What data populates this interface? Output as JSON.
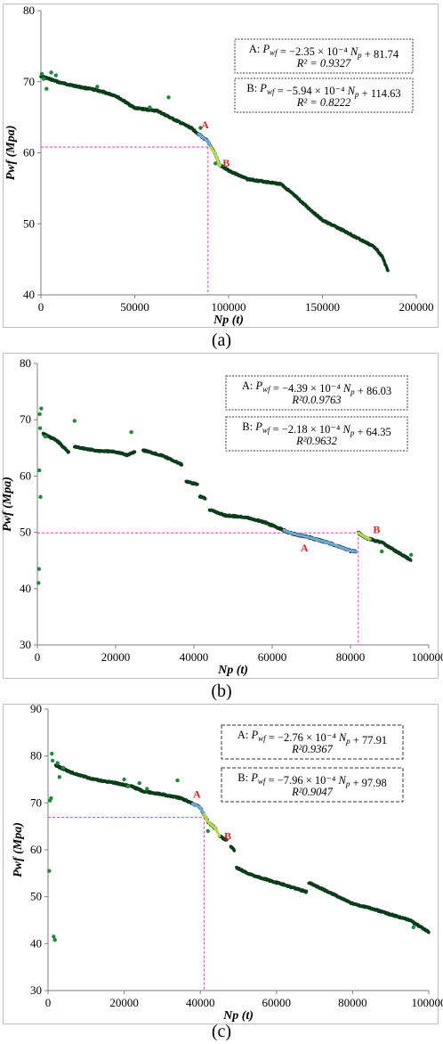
{
  "colors": {
    "dark_points": "#0b3d1b",
    "green_points": "#1e8a3c",
    "fit_a": "#6fa8dc",
    "fit_b": "#b7d94c",
    "guide": "#ff33cc",
    "label_red": "#e01f1f"
  },
  "chart_data": [
    {
      "type": "scatter",
      "caption": "(a)",
      "xlabel": "Np (t)",
      "ylabel": "Pwf (Mpa)",
      "xlim": [
        0,
        200000
      ],
      "ylim": [
        40,
        80
      ],
      "xticks": [
        "0",
        "50000",
        "100000",
        "150000",
        "200000"
      ],
      "yticks": [
        "40",
        "50",
        "60",
        "70",
        "80"
      ],
      "breakpoint": {
        "x": 89000,
        "y": 60.8
      },
      "fit_labels": [
        "A",
        "B"
      ],
      "equations": [
        {
          "name": "A",
          "line1": "A: P_wf = −2.35 × 10⁻⁴ N_p + 81.74",
          "line2": "R² = 0.9327"
        },
        {
          "name": "B",
          "line1": "B: P_wf = −5.94 × 10⁻⁴ N_p + 114.63",
          "line2": "R² = 0.8222"
        }
      ],
      "profile": [
        [
          0,
          70.8
        ],
        [
          10000,
          69.9
        ],
        [
          20000,
          69.3
        ],
        [
          30000,
          68.8
        ],
        [
          40000,
          68.0
        ],
        [
          50000,
          66.3
        ],
        [
          62000,
          65.9
        ],
        [
          70000,
          64.8
        ],
        [
          80000,
          63.5
        ],
        [
          86000,
          62.2
        ],
        [
          89000,
          61.6
        ],
        [
          90000,
          61.0
        ],
        [
          93000,
          59.8
        ],
        [
          95000,
          58.3
        ],
        [
          100000,
          57.5
        ],
        [
          110000,
          56.3
        ],
        [
          120000,
          55.9
        ],
        [
          128000,
          55.6
        ],
        [
          135000,
          54.0
        ],
        [
          140000,
          52.8
        ],
        [
          150000,
          50.5
        ],
        [
          160000,
          49.2
        ],
        [
          170000,
          47.8
        ],
        [
          178000,
          46.7
        ],
        [
          182000,
          45.3
        ],
        [
          185000,
          43.3
        ]
      ],
      "outliers": [
        [
          500,
          71.1
        ],
        [
          1500,
          70.4
        ],
        [
          3000,
          69.0
        ],
        [
          5500,
          71.3
        ],
        [
          8000,
          70.9
        ],
        [
          30000,
          69.3
        ],
        [
          58000,
          66.4
        ],
        [
          68000,
          67.8
        ],
        [
          85000,
          63.5
        ],
        [
          93000,
          58.5
        ]
      ],
      "fit_a_range": [
        84000,
        90500
      ],
      "fit_b_range": [
        90500,
        95500
      ]
    },
    {
      "type": "scatter",
      "caption": "(b)",
      "xlabel": "Np (t)",
      "ylabel": "Pwf (Mpa)",
      "xlim": [
        0,
        100000
      ],
      "ylim": [
        30,
        80
      ],
      "xticks": [
        "0",
        "20000",
        "40000",
        "60000",
        "80000",
        "100000"
      ],
      "yticks": [
        "30",
        "40",
        "50",
        "60",
        "70",
        "80"
      ],
      "breakpoint": {
        "x": 82000,
        "y": 49.9
      },
      "fit_labels": [
        "A",
        "B"
      ],
      "equations": [
        {
          "name": "A",
          "line1": "A: P_wf = −4.39 × 10⁻⁴ N_p + 86.03",
          "line2": "R²0.0.9763"
        },
        {
          "name": "B",
          "line1": "B: P_wf = −2.18 × 10⁻⁴ N_p + 64.35",
          "line2": "R²0.9632"
        }
      ],
      "segments": [
        [
          [
            1500,
            67.5
          ],
          [
            5000,
            66.3
          ],
          [
            8000,
            64.2
          ]
        ],
        [
          [
            9500,
            65.2
          ],
          [
            15000,
            64.5
          ],
          [
            20000,
            64.3
          ],
          [
            23000,
            63.7
          ],
          [
            25000,
            64.4
          ]
        ],
        [
          [
            27000,
            64.6
          ],
          [
            32000,
            63.6
          ],
          [
            37000,
            62.0
          ]
        ],
        [
          [
            38000,
            59.0
          ],
          [
            41000,
            58.5
          ]
        ],
        [
          [
            41500,
            56.4
          ],
          [
            43000,
            56.0
          ]
        ],
        [
          [
            44000,
            54.0
          ],
          [
            48000,
            53.0
          ],
          [
            53000,
            52.7
          ],
          [
            58000,
            51.8
          ],
          [
            65000,
            49.8
          ],
          [
            70000,
            49.0
          ],
          [
            75000,
            48.0
          ],
          [
            80000,
            46.7
          ],
          [
            81500,
            46.6
          ]
        ],
        [
          [
            82000,
            49.9
          ],
          [
            84000,
            49.0
          ],
          [
            88000,
            48.2
          ],
          [
            92000,
            46.5
          ],
          [
            95500,
            45.0
          ]
        ]
      ],
      "outliers": [
        [
          300,
          41.0
        ],
        [
          400,
          43.5
        ],
        [
          600,
          71.0
        ],
        [
          700,
          68.5
        ],
        [
          500,
          61.0
        ],
        [
          800,
          56.3
        ],
        [
          1000,
          72.0
        ],
        [
          2000,
          67.0
        ],
        [
          9500,
          69.8
        ],
        [
          24000,
          67.8
        ],
        [
          88000,
          46.6
        ],
        [
          95500,
          46.0
        ]
      ],
      "fit_a_range": [
        63000,
        81500
      ],
      "fit_b_range": [
        82000,
        85000
      ]
    },
    {
      "type": "scatter",
      "caption": "(c)",
      "xlabel": "Np (t)",
      "ylabel": "Pwf (Mpa)",
      "xlim": [
        0,
        100000
      ],
      "ylim": [
        30,
        90
      ],
      "xticks": [
        "0",
        "20000",
        "40000",
        "60000",
        "80000",
        "100000"
      ],
      "yticks": [
        "30",
        "40",
        "50",
        "60",
        "70",
        "80",
        "90"
      ],
      "breakpoint": {
        "x": 41000,
        "y": 66.9
      },
      "fit_labels": [
        "A",
        "B"
      ],
      "equations": [
        {
          "name": "A",
          "line1": "A: P_wf = −2.76 × 10⁻⁴ N_p + 77.91",
          "line2": "R²0.9367"
        },
        {
          "name": "B",
          "line1": "B: P_wf = −7.96 × 10⁻⁴ N_p + 97.98",
          "line2": "R²0.9047"
        }
      ],
      "segments": [
        [
          [
            2000,
            78.0
          ],
          [
            6000,
            76.5
          ],
          [
            12000,
            75.0
          ],
          [
            18000,
            74.2
          ],
          [
            22000,
            73.5
          ],
          [
            25000,
            72.5
          ],
          [
            30000,
            71.8
          ],
          [
            35000,
            71.0
          ],
          [
            40000,
            69.0
          ],
          [
            42000,
            66.0
          ],
          [
            44000,
            64.5
          ]
        ],
        [
          [
            45000,
            63.0
          ],
          [
            47000,
            62.0
          ]
        ],
        [
          [
            48000,
            60.8
          ],
          [
            49000,
            59.8
          ]
        ],
        [
          [
            49500,
            56.2
          ],
          [
            53000,
            54.8
          ],
          [
            58000,
            53.5
          ],
          [
            63000,
            52.3
          ],
          [
            68000,
            51.0
          ]
        ],
        [
          [
            68500,
            53.0
          ],
          [
            75000,
            50.5
          ],
          [
            80000,
            48.5
          ],
          [
            85000,
            47.5
          ],
          [
            90000,
            46.2
          ],
          [
            95000,
            45.0
          ],
          [
            100000,
            42.5
          ]
        ]
      ],
      "outliers": [
        [
          300,
          55.5
        ],
        [
          500,
          70.5
        ],
        [
          800,
          71.0
        ],
        [
          1000,
          80.5
        ],
        [
          1200,
          79.0
        ],
        [
          1500,
          41.5
        ],
        [
          1800,
          40.8
        ],
        [
          2500,
          78.5
        ],
        [
          3000,
          75.5
        ],
        [
          4000,
          77.5
        ],
        [
          20000,
          75.0
        ],
        [
          21000,
          73.5
        ],
        [
          24000,
          74.2
        ],
        [
          26000,
          73.0
        ],
        [
          34000,
          74.8
        ],
        [
          42000,
          64.0
        ],
        [
          44000,
          64.5
        ],
        [
          96000,
          43.5
        ]
      ],
      "fit_a_range": [
        38000,
        41000
      ],
      "fit_b_range": [
        41000,
        45000
      ]
    }
  ]
}
